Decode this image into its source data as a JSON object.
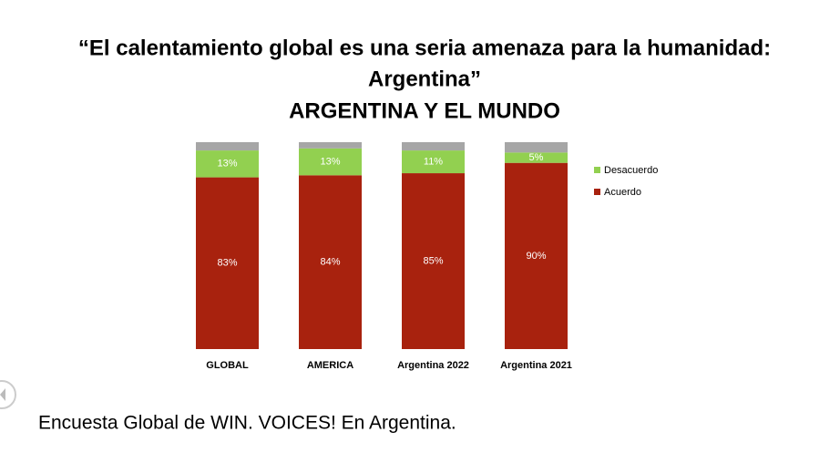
{
  "chart_data": {
    "type": "stacked-bar",
    "title": [
      "“El calentamiento global es una seria amenaza para la humanidad:",
      "Argentina”"
    ],
    "subtitle": "ARGENTINA Y EL MUNDO",
    "categories": [
      "GLOBAL",
      "AMERICA",
      "Argentina 2022",
      "Argentina 2021"
    ],
    "series": [
      {
        "name": "Acuerdo",
        "color": "#a8220e",
        "values": [
          83,
          84,
          85,
          90
        ],
        "value_labels": [
          "83%",
          "84%",
          "85%",
          "90%"
        ]
      },
      {
        "name": "Desacuerdo",
        "color": "#92d050",
        "values": [
          13,
          13,
          11,
          5
        ],
        "value_labels": [
          "13%",
          "13%",
          "11%",
          "5%"
        ]
      },
      {
        "color": "#a6a6a6",
        "values": [
          4,
          3,
          4,
          5
        ]
      }
    ],
    "ylim": [
      0,
      100
    ]
  },
  "footer": "Encuesta Global de WIN. VOICES! En Argentina."
}
